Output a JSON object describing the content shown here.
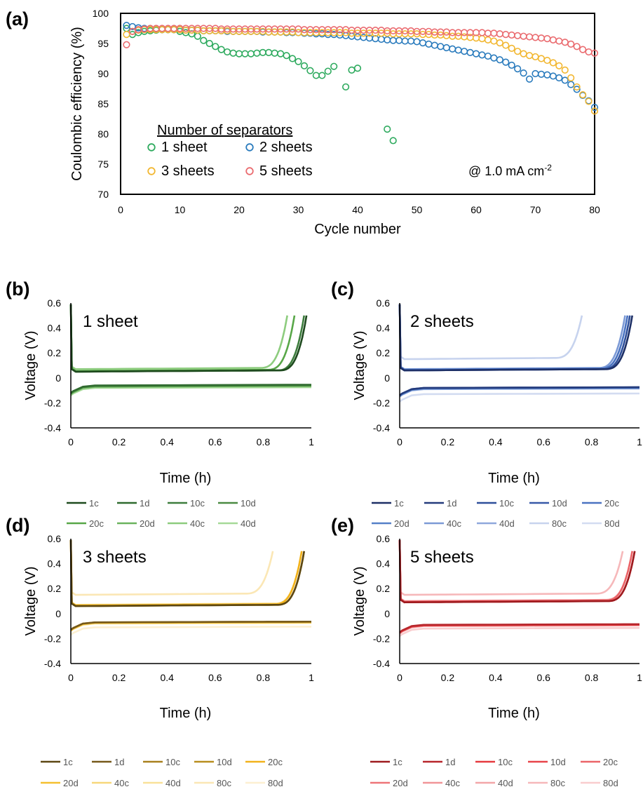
{
  "panel_a": {
    "tag": "(a)",
    "legend_title": "Number of separators",
    "note": "@ 1.0 mA cm",
    "note_sup": "-2",
    "colors": {
      "s1": "#2eaa5e",
      "s2": "#2a7bbd",
      "s3": "#f2b731",
      "s5": "#ea6b6f"
    }
  },
  "chart_data": [
    {
      "id": "a",
      "type": "scatter",
      "xlabel": "Cycle number",
      "ylabel": "Coulombic efficiency  (%)",
      "xlim": [
        0,
        80
      ],
      "ylim": [
        70,
        100
      ],
      "xticks": [
        0,
        10,
        20,
        30,
        40,
        50,
        60,
        70,
        80
      ],
      "yticks": [
        70,
        75,
        80,
        85,
        90,
        95,
        100
      ],
      "series": [
        {
          "name": "1 sheet",
          "key": "s1",
          "x": [
            1,
            2,
            3,
            4,
            5,
            6,
            7,
            8,
            9,
            10,
            11,
            12,
            13,
            14,
            15,
            16,
            17,
            18,
            19,
            20,
            21,
            22,
            23,
            24,
            25,
            26,
            27,
            28,
            29,
            30,
            31,
            32,
            33,
            34,
            35,
            36,
            38,
            39,
            40,
            45,
            46
          ],
          "y": [
            97.5,
            96.5,
            96.8,
            97.0,
            97.1,
            97.2,
            97.3,
            97.3,
            97.3,
            97.0,
            96.8,
            96.6,
            96.2,
            95.5,
            95.0,
            94.5,
            94.0,
            93.6,
            93.4,
            93.3,
            93.3,
            93.3,
            93.4,
            93.5,
            93.5,
            93.4,
            93.3,
            93.0,
            92.5,
            92.0,
            91.3,
            90.5,
            89.7,
            89.7,
            90.4,
            91.2,
            87.8,
            90.6,
            90.9,
            80.8,
            78.9
          ]
        },
        {
          "name": "2 sheets",
          "key": "s2",
          "x": [
            1,
            2,
            3,
            4,
            5,
            6,
            7,
            8,
            9,
            10,
            11,
            12,
            13,
            14,
            15,
            16,
            17,
            18,
            19,
            20,
            21,
            22,
            23,
            24,
            25,
            26,
            27,
            28,
            29,
            30,
            31,
            32,
            33,
            34,
            35,
            36,
            37,
            38,
            39,
            40,
            41,
            42,
            43,
            44,
            45,
            46,
            47,
            48,
            49,
            50,
            51,
            52,
            53,
            54,
            55,
            56,
            57,
            58,
            59,
            60,
            61,
            62,
            63,
            64,
            65,
            66,
            67,
            68,
            69,
            70,
            71,
            72,
            73,
            74,
            75,
            76,
            77,
            78,
            79,
            80
          ],
          "y": [
            98.0,
            97.8,
            97.6,
            97.5,
            97.4,
            97.4,
            97.3,
            97.3,
            97.3,
            97.3,
            97.2,
            97.2,
            97.2,
            97.1,
            97.1,
            97.1,
            97.1,
            97.0,
            97.0,
            97.0,
            97.0,
            97.0,
            97.0,
            96.9,
            96.9,
            96.9,
            96.9,
            96.8,
            96.8,
            96.8,
            96.7,
            96.7,
            96.6,
            96.6,
            96.5,
            96.5,
            96.4,
            96.3,
            96.2,
            96.1,
            96.0,
            95.9,
            95.8,
            95.7,
            95.6,
            95.5,
            95.5,
            95.4,
            95.4,
            95.3,
            95.1,
            94.9,
            94.7,
            94.5,
            94.3,
            94.1,
            93.9,
            93.7,
            93.5,
            93.3,
            93.1,
            92.9,
            92.6,
            92.3,
            91.9,
            91.4,
            90.8,
            90.1,
            89.1,
            90.0,
            89.9,
            89.8,
            89.6,
            89.3,
            88.9,
            88.2,
            87.4,
            86.4,
            85.5,
            84.4
          ]
        },
        {
          "name": "3 sheets",
          "key": "s3",
          "x": [
            1,
            2,
            3,
            4,
            5,
            6,
            7,
            8,
            9,
            10,
            11,
            12,
            13,
            14,
            15,
            16,
            17,
            18,
            19,
            20,
            21,
            22,
            23,
            24,
            25,
            26,
            27,
            28,
            29,
            30,
            31,
            32,
            33,
            34,
            35,
            36,
            37,
            38,
            39,
            40,
            41,
            42,
            43,
            44,
            45,
            46,
            47,
            48,
            49,
            50,
            51,
            52,
            53,
            54,
            55,
            56,
            57,
            58,
            59,
            60,
            61,
            62,
            63,
            64,
            65,
            66,
            67,
            68,
            69,
            70,
            71,
            72,
            73,
            74,
            75,
            76,
            77,
            78,
            79,
            80
          ],
          "y": [
            96.5,
            97.0,
            97.2,
            97.3,
            97.3,
            97.3,
            97.3,
            97.3,
            97.3,
            97.3,
            97.2,
            97.2,
            97.2,
            97.1,
            97.1,
            97.1,
            97.1,
            97.1,
            97.0,
            97.0,
            97.0,
            97.0,
            97.0,
            97.0,
            96.9,
            96.9,
            96.9,
            96.9,
            96.9,
            96.8,
            96.8,
            96.8,
            96.8,
            96.8,
            96.8,
            96.8,
            96.8,
            96.8,
            96.7,
            96.7,
            96.7,
            96.7,
            96.7,
            96.7,
            96.7,
            96.6,
            96.6,
            96.6,
            96.6,
            96.6,
            96.5,
            96.5,
            96.4,
            96.4,
            96.3,
            96.2,
            96.2,
            96.1,
            96.0,
            95.9,
            95.8,
            95.6,
            95.4,
            95.1,
            94.7,
            94.2,
            93.7,
            93.3,
            93.0,
            92.8,
            92.5,
            92.2,
            91.8,
            91.3,
            90.6,
            89.3,
            87.8,
            86.5,
            85.4,
            83.8
          ]
        },
        {
          "name": "5 sheets",
          "key": "s5",
          "x": [
            1,
            2,
            3,
            4,
            5,
            6,
            7,
            8,
            9,
            10,
            11,
            12,
            13,
            14,
            15,
            16,
            17,
            18,
            19,
            20,
            21,
            22,
            23,
            24,
            25,
            26,
            27,
            28,
            29,
            30,
            31,
            32,
            33,
            34,
            35,
            36,
            37,
            38,
            39,
            40,
            41,
            42,
            43,
            44,
            45,
            46,
            47,
            48,
            49,
            50,
            51,
            52,
            53,
            54,
            55,
            56,
            57,
            58,
            59,
            60,
            61,
            62,
            63,
            64,
            65,
            66,
            67,
            68,
            69,
            70,
            71,
            72,
            73,
            74,
            75,
            76,
            77,
            78,
            79,
            80
          ],
          "y": [
            94.8,
            97.0,
            97.3,
            97.4,
            97.5,
            97.5,
            97.5,
            97.5,
            97.5,
            97.5,
            97.5,
            97.5,
            97.5,
            97.5,
            97.5,
            97.5,
            97.4,
            97.4,
            97.4,
            97.4,
            97.4,
            97.4,
            97.4,
            97.4,
            97.4,
            97.4,
            97.4,
            97.4,
            97.4,
            97.4,
            97.3,
            97.3,
            97.3,
            97.3,
            97.3,
            97.3,
            97.3,
            97.3,
            97.2,
            97.2,
            97.2,
            97.2,
            97.2,
            97.2,
            97.1,
            97.1,
            97.1,
            97.1,
            97.1,
            97.0,
            97.0,
            97.0,
            96.9,
            96.9,
            96.9,
            96.8,
            96.8,
            96.8,
            96.8,
            96.8,
            96.8,
            96.7,
            96.7,
            96.6,
            96.5,
            96.4,
            96.3,
            96.2,
            96.1,
            96.0,
            95.9,
            95.8,
            95.6,
            95.4,
            95.2,
            94.9,
            94.5,
            94.0,
            93.6,
            93.4
          ]
        }
      ]
    },
    {
      "id": "b",
      "type": "line",
      "tag": "(b)",
      "label": "1 sheet",
      "xlabel": "Time  (h)",
      "ylabel": "Voltage  (V)",
      "xlim": [
        0,
        1
      ],
      "ylim": [
        -0.4,
        0.6
      ],
      "xticks": [
        "0",
        "0.2",
        "0.4",
        "0.6",
        "0.8",
        "1"
      ],
      "yticks": [
        "-0.4",
        "-0.2",
        "0",
        "0.2",
        "0.4",
        "0.6"
      ],
      "series": [
        {
          "name": "1c",
          "color": "#1e4a1e",
          "end": 0.98,
          "plateau": 0.05
        },
        {
          "name": "1d",
          "color": "#2f6a2f",
          "plateau": -0.06
        },
        {
          "name": "10c",
          "color": "#3d7d3d",
          "end": 0.97,
          "plateau": 0.05
        },
        {
          "name": "10d",
          "color": "#4a8a42",
          "plateau": -0.065
        },
        {
          "name": "20c",
          "color": "#58a748",
          "end": 0.93,
          "plateau": 0.055
        },
        {
          "name": "20d",
          "color": "#6bb35e",
          "plateau": -0.07
        },
        {
          "name": "40c",
          "color": "#8dcc7e",
          "end": 0.9,
          "plateau": 0.07
        },
        {
          "name": "40d",
          "color": "#a6d998",
          "plateau": -0.08
        }
      ]
    },
    {
      "id": "c",
      "type": "line",
      "tag": "(c)",
      "label": "2 sheets",
      "xlabel": "Time  (h)",
      "ylabel": "Voltage  (V)",
      "xlim": [
        0,
        1
      ],
      "ylim": [
        -0.4,
        0.6
      ],
      "xticks": [
        "0",
        "0.2",
        "0.4",
        "0.6",
        "0.8",
        "1"
      ],
      "yticks": [
        "-0.4",
        "-0.2",
        "0",
        "0.2",
        "0.4",
        "0.6"
      ],
      "series": [
        {
          "name": "1c",
          "color": "#1d2f66",
          "end": 0.97,
          "plateau": 0.06
        },
        {
          "name": "1d",
          "color": "#243b7c",
          "plateau": -0.08
        },
        {
          "name": "10c",
          "color": "#2e4f9a",
          "end": 0.96,
          "plateau": 0.06
        },
        {
          "name": "10d",
          "color": "#3859a8",
          "plateau": -0.08
        },
        {
          "name": "20c",
          "color": "#4a73c1",
          "end": 0.95,
          "plateau": 0.065
        },
        {
          "name": "20d",
          "color": "#5580c8",
          "plateau": -0.085
        },
        {
          "name": "40c",
          "color": "#7c9ad6",
          "end": 0.94,
          "plateau": 0.07
        },
        {
          "name": "40d",
          "color": "#8fa8dc",
          "plateau": -0.09
        },
        {
          "name": "80c",
          "color": "#c7d3ee",
          "end": 0.76,
          "plateau": 0.15
        },
        {
          "name": "80d",
          "color": "#d3dcf1",
          "plateau": -0.13
        }
      ]
    },
    {
      "id": "d",
      "type": "line",
      "tag": "(d)",
      "label": "3 sheets",
      "xlabel": "Time  (h)",
      "ylabel": "Voltage  (V)",
      "xlim": [
        0,
        1
      ],
      "ylim": [
        -0.4,
        0.6
      ],
      "xticks": [
        "0",
        "0.2",
        "0.4",
        "0.6",
        "0.8",
        "1"
      ],
      "yticks": [
        "-0.4",
        "-0.2",
        "0",
        "0.2",
        "0.4",
        "0.6"
      ],
      "series": [
        {
          "name": "1c",
          "color": "#5c4712",
          "end": 0.97,
          "plateau": 0.06
        },
        {
          "name": "1d",
          "color": "#76591a",
          "plateau": -0.07
        },
        {
          "name": "10c",
          "color": "#a8801e",
          "end": 0.97,
          "plateau": 0.06
        },
        {
          "name": "10d",
          "color": "#b88e1f",
          "plateau": -0.07
        },
        {
          "name": "20c",
          "color": "#f2b21b",
          "end": 0.96,
          "plateau": 0.065
        },
        {
          "name": "20d",
          "color": "#f5c030",
          "plateau": -0.075
        },
        {
          "name": "40c",
          "color": "#f7d77a",
          "end": 0.96,
          "plateau": 0.07
        },
        {
          "name": "40d",
          "color": "#f9e199",
          "plateau": -0.08
        },
        {
          "name": "80c",
          "color": "#fbe7b5",
          "end": 0.84,
          "plateau": 0.15
        },
        {
          "name": "80d",
          "color": "#fdf0d1",
          "plateau": -0.11
        }
      ]
    },
    {
      "id": "e",
      "type": "line",
      "tag": "(e)",
      "label": "5 sheets",
      "xlabel": "Time  (h)",
      "ylabel": "Voltage  (V)",
      "xlim": [
        0,
        1
      ],
      "ylim": [
        -0.4,
        0.6
      ],
      "xticks": [
        "0",
        "0.2",
        "0.4",
        "0.6",
        "0.8",
        "1"
      ],
      "yticks": [
        "-0.4",
        "-0.2",
        "0",
        "0.2",
        "0.4",
        "0.6"
      ],
      "series": [
        {
          "name": "1c",
          "color": "#9e1b1f",
          "end": 0.98,
          "plateau": 0.09
        },
        {
          "name": "1d",
          "color": "#b7262b",
          "plateau": -0.09
        },
        {
          "name": "10c",
          "color": "#e63a3f",
          "end": 0.98,
          "plateau": 0.09
        },
        {
          "name": "10d",
          "color": "#e84449",
          "plateau": -0.095
        },
        {
          "name": "20c",
          "color": "#eb6468",
          "end": 0.97,
          "plateau": 0.095
        },
        {
          "name": "20d",
          "color": "#ee7478",
          "plateau": -0.095
        },
        {
          "name": "40c",
          "color": "#f19598",
          "end": 0.97,
          "plateau": 0.1
        },
        {
          "name": "40d",
          "color": "#f3a6a8",
          "plateau": -0.1
        },
        {
          "name": "80c",
          "color": "#f6b8ba",
          "end": 0.93,
          "plateau": 0.15
        },
        {
          "name": "80d",
          "color": "#f9cdce",
          "plateau": -0.12
        }
      ]
    }
  ]
}
